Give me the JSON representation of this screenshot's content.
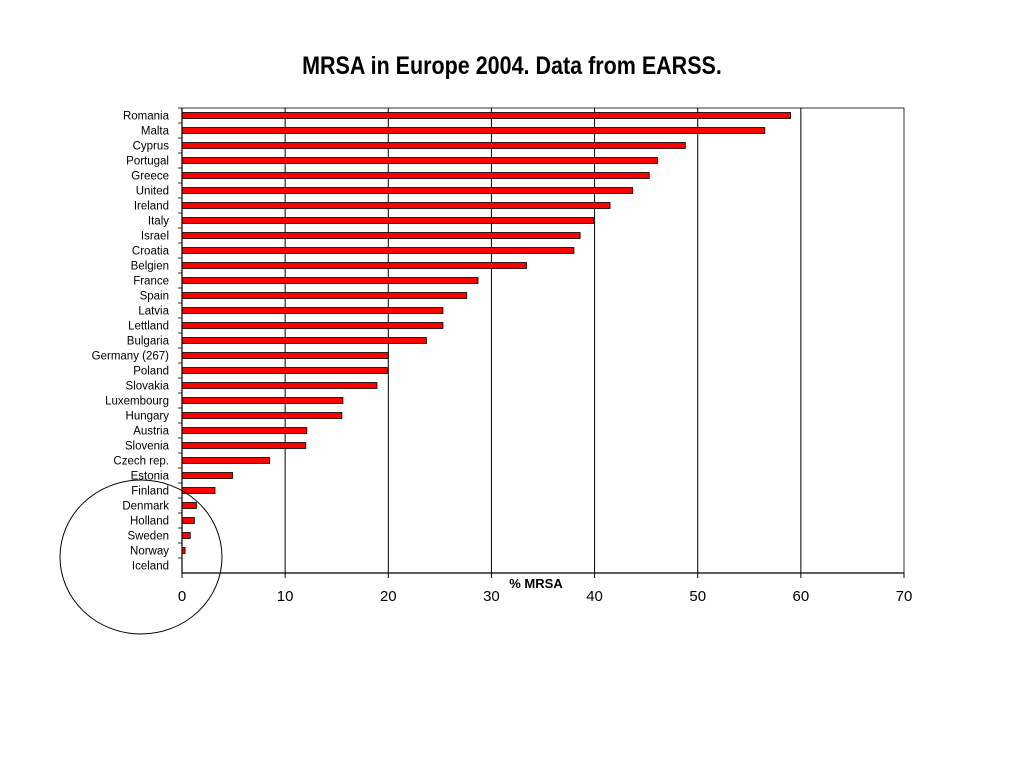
{
  "chart_data": {
    "type": "bar",
    "orientation": "horizontal",
    "title": "MRSA in Europe 2004. Data from EARSS.",
    "xlabel": "% MRSA",
    "ylabel": "",
    "xlim": [
      0,
      70
    ],
    "xticks": [
      0,
      10,
      20,
      30,
      40,
      50,
      60,
      70
    ],
    "grid": "vertical",
    "bar_color": "#ff0000",
    "categories": [
      "Romania",
      "Malta",
      "Cyprus",
      "Portugal",
      "Greece",
      "United",
      "Ireland",
      "Italy",
      "Israel",
      "Croatia",
      "Belgien",
      "France",
      "Spain",
      "Latvia",
      "Lettland",
      "Bulgaria",
      "Germany (267)",
      "Poland",
      "Slovakia",
      "Luxembourg",
      "Hungary",
      "Austria",
      "Slovenia",
      "Czech rep.",
      "Estonia",
      "Finland",
      "Denmark",
      "Holland",
      "Sweden",
      "Norway",
      "Iceland"
    ],
    "values": [
      59.0,
      56.5,
      48.8,
      46.1,
      45.3,
      43.7,
      41.5,
      39.9,
      38.6,
      38.0,
      33.4,
      28.7,
      27.6,
      25.3,
      25.3,
      23.7,
      20.0,
      19.9,
      18.9,
      15.6,
      15.5,
      12.1,
      12.0,
      8.5,
      4.9,
      3.2,
      1.4,
      1.2,
      0.8,
      0.3,
      0.0
    ],
    "annotation": "circle"
  }
}
